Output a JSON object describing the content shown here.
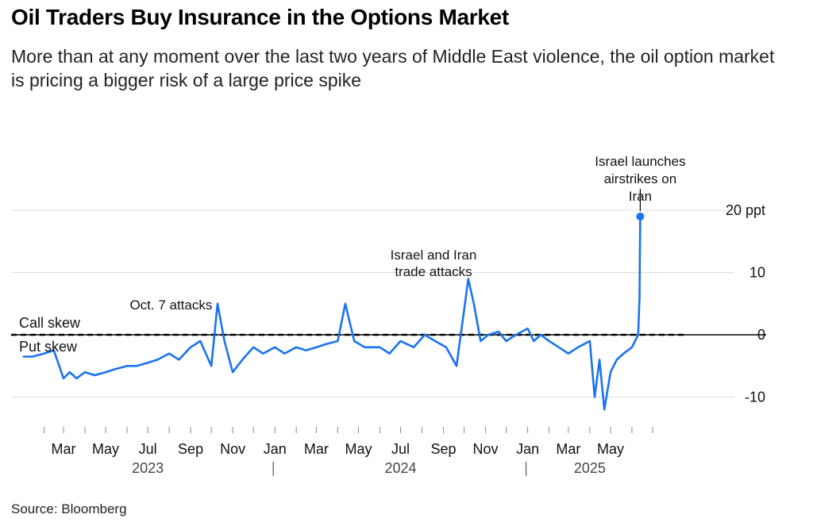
{
  "title": "Oil Traders Buy Insurance in the Options Market",
  "subtitle": "More than at any moment over the last two years of Middle East violence, the oil option market is pricing a bigger risk of a large price spike",
  "source": "Source: Bloomberg",
  "colors": {
    "line": "#1a73f0",
    "grid": "#dddddd",
    "zero": "#000000"
  },
  "chart_data": {
    "type": "line",
    "title": "Oil Traders Buy Insurance in the Options Market",
    "xlabel": "",
    "ylabel": "",
    "ylim": [
      -14,
      22
    ],
    "y_ticks": [
      {
        "value": 20,
        "label": "20 ppt"
      },
      {
        "value": 10,
        "label": "10"
      },
      {
        "value": 0,
        "label": "0"
      },
      {
        "value": -10,
        "label": "-10"
      }
    ],
    "x_ticks": [
      {
        "date": "2023-03",
        "label": "Mar"
      },
      {
        "date": "2023-05",
        "label": "May"
      },
      {
        "date": "2023-07",
        "label": "Jul"
      },
      {
        "date": "2023-09",
        "label": "Sep"
      },
      {
        "date": "2023-11",
        "label": "Nov"
      },
      {
        "date": "2024-01",
        "label": "Jan"
      },
      {
        "date": "2024-03",
        "label": "Mar"
      },
      {
        "date": "2024-05",
        "label": "May"
      },
      {
        "date": "2024-07",
        "label": "Jul"
      },
      {
        "date": "2024-09",
        "label": "Sep"
      },
      {
        "date": "2024-11",
        "label": "Nov"
      },
      {
        "date": "2025-01",
        "label": "Jan"
      },
      {
        "date": "2025-03",
        "label": "Mar"
      },
      {
        "date": "2025-05",
        "label": "May"
      }
    ],
    "year_labels": [
      {
        "date": "2023-07",
        "label": "2023"
      },
      {
        "date": "2024-07",
        "label": "2024"
      },
      {
        "date": "2025-04",
        "label": "2025"
      }
    ],
    "zero_labels": {
      "above": "Call skew",
      "below": "Put skew"
    },
    "annotations": [
      {
        "date": "2023-10-07",
        "value": 5,
        "text": [
          "Oct. 7 attacks"
        ]
      },
      {
        "date": "2024-10-01",
        "value": 10,
        "text": [
          "Israel and Iran",
          "trade attacks"
        ]
      },
      {
        "date": "2025-06-13",
        "value": 19,
        "text": [
          "Israel launches",
          "airstrikes on",
          "Iran"
        ]
      }
    ],
    "series": [
      {
        "x": [
          "2023-01-01",
          "2023-01-15",
          "2023-02-01",
          "2023-02-15",
          "2023-03-01",
          "2023-03-10",
          "2023-03-20",
          "2023-04-01",
          "2023-04-15",
          "2023-05-01",
          "2023-05-15",
          "2023-06-01",
          "2023-06-15",
          "2023-07-01",
          "2023-07-15",
          "2023-08-01",
          "2023-08-15",
          "2023-09-01",
          "2023-09-15",
          "2023-10-01",
          "2023-10-10",
          "2023-10-20",
          "2023-11-01",
          "2023-11-15",
          "2023-12-01",
          "2023-12-15",
          "2024-01-01",
          "2024-01-15",
          "2024-02-01",
          "2024-02-15",
          "2024-03-01",
          "2024-03-15",
          "2024-04-01",
          "2024-04-12",
          "2024-04-25",
          "2024-05-10",
          "2024-06-01",
          "2024-06-15",
          "2024-07-01",
          "2024-07-20",
          "2024-08-05",
          "2024-08-20",
          "2024-09-05",
          "2024-09-20",
          "2024-10-01",
          "2024-10-07",
          "2024-10-15",
          "2024-10-25",
          "2024-11-05",
          "2024-11-20",
          "2024-12-01",
          "2024-12-15",
          "2025-01-01",
          "2025-01-10",
          "2025-01-20",
          "2025-02-01",
          "2025-02-15",
          "2025-03-01",
          "2025-03-15",
          "2025-04-01",
          "2025-04-08",
          "2025-04-15",
          "2025-04-22",
          "2025-05-01",
          "2025-05-10",
          "2025-05-20",
          "2025-06-01",
          "2025-06-10",
          "2025-06-12",
          "2025-06-13"
        ],
        "values": [
          -3.5,
          -3.5,
          -3,
          -2.5,
          -7,
          -6,
          -7,
          -6,
          -6.5,
          -6,
          -5.5,
          -5,
          -5,
          -4.5,
          -4,
          -3,
          -4,
          -2,
          -1,
          -5,
          5,
          -1,
          -6,
          -4,
          -2,
          -3,
          -2,
          -3,
          -2,
          -2.5,
          -2,
          -1.5,
          -1,
          5,
          -1,
          -2,
          -2,
          -3,
          -1,
          -2,
          0,
          -1,
          -2,
          -5,
          4,
          9,
          5,
          -1,
          0,
          0.5,
          -1,
          0,
          1,
          -1,
          0,
          -1,
          -2,
          -3,
          -2,
          -1,
          -10,
          -4,
          -12,
          -6,
          -4,
          -3,
          -2,
          0,
          6,
          19
        ]
      }
    ]
  }
}
